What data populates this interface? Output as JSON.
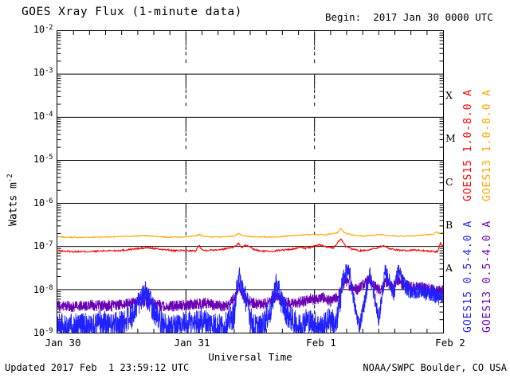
{
  "header": {
    "title": "GOES Xray Flux (1-minute data)",
    "begin_label": "Begin:  2017 Jan 30 0000 UTC"
  },
  "footer": {
    "updated": "Updated 2017 Feb  1 23:59:12 UTC",
    "credit": "NOAA/SWPC Boulder, CO USA"
  },
  "axes": {
    "x_title": "Universal Time",
    "y_title_base": "Watts m",
    "y_title_exp": "-2",
    "x_tick_labels": [
      "Jan 30",
      "Jan 31",
      "Feb 1",
      "Feb 2"
    ],
    "y_tick_base": "10",
    "y_tick_exponents": [
      -2,
      -3,
      -4,
      -5,
      -6,
      -7,
      -8,
      -9
    ],
    "flare_class_letters": [
      "X",
      "M",
      "C",
      "B",
      "A"
    ]
  },
  "legend": [
    {
      "label": "GOES15 1.0-8.0 A",
      "color": "#ff0000"
    },
    {
      "label": "GOES13 1.0-8.0 A",
      "color": "#ffa500"
    },
    {
      "label": "GOES15 0.5-4.0 A",
      "color": "#2121ff"
    },
    {
      "label": "GOES13 0.5-4.0 A",
      "color": "#6a00b4"
    }
  ],
  "chart_data": {
    "type": "line",
    "title": "GOES Xray Flux (1-minute data)",
    "xlabel": "Universal Time",
    "ylabel": "Watts m^-2",
    "x_unit": "hours since 2017 Jan 30 0000 UTC",
    "x_range_hours": [
      0,
      72
    ],
    "x_day_labels": [
      "Jan 30",
      "Jan 31",
      "Feb 1",
      "Feb 2"
    ],
    "y_scale": "log10",
    "y_log10_range": [
      -9,
      -2
    ],
    "grid": {
      "horizontal_solid_at_decades": true,
      "vertical_dashed_at_day_boundaries_hours": [
        24,
        48
      ]
    },
    "flare_classes": [
      {
        "label": "X",
        "log10_band_center": -3.5
      },
      {
        "label": "M",
        "log10_band_center": -4.5
      },
      {
        "label": "C",
        "log10_band_center": -5.5
      },
      {
        "label": "B",
        "log10_band_center": -6.5
      },
      {
        "label": "A",
        "log10_band_center": -7.5
      }
    ],
    "series": [
      {
        "name": "GOES13 1.0-8.0 A",
        "color": "#ffa500",
        "band": "long",
        "seed": 7,
        "noise_log10": 0.012,
        "step_min": 6,
        "keypoints_hour_log10flux": [
          [
            0,
            -6.78
          ],
          [
            4,
            -6.79
          ],
          [
            8,
            -6.78
          ],
          [
            12,
            -6.77
          ],
          [
            16,
            -6.75
          ],
          [
            18,
            -6.76
          ],
          [
            20,
            -6.78
          ],
          [
            24,
            -6.78
          ],
          [
            26,
            -6.75
          ],
          [
            26.5,
            -6.72
          ],
          [
            27.5,
            -6.77
          ],
          [
            30,
            -6.78
          ],
          [
            33,
            -6.76
          ],
          [
            33.8,
            -6.7
          ],
          [
            34.5,
            -6.75
          ],
          [
            36,
            -6.77
          ],
          [
            40,
            -6.78
          ],
          [
            44,
            -6.75
          ],
          [
            46,
            -6.73
          ],
          [
            48,
            -6.72
          ],
          [
            50,
            -6.73
          ],
          [
            52.3,
            -6.68
          ],
          [
            52.9,
            -6.58
          ],
          [
            53.6,
            -6.68
          ],
          [
            55,
            -6.73
          ],
          [
            57,
            -6.76
          ],
          [
            59,
            -6.74
          ],
          [
            60.5,
            -6.72
          ],
          [
            62,
            -6.75
          ],
          [
            64,
            -6.76
          ],
          [
            66,
            -6.75
          ],
          [
            68,
            -6.74
          ],
          [
            70,
            -6.72
          ],
          [
            70.8,
            -6.67
          ],
          [
            71.4,
            -6.7
          ],
          [
            72,
            -6.68
          ]
        ]
      },
      {
        "name": "GOES15 1.0-8.0 A",
        "color": "#ff0000",
        "band": "long",
        "seed": 13,
        "noise_log10": 0.02,
        "step_min": 6,
        "keypoints_hour_log10flux": [
          [
            0,
            -7.1
          ],
          [
            3,
            -7.12
          ],
          [
            6,
            -7.12
          ],
          [
            9,
            -7.1
          ],
          [
            12,
            -7.09
          ],
          [
            15,
            -7.05
          ],
          [
            17,
            -7.03
          ],
          [
            19,
            -7.06
          ],
          [
            22,
            -7.1
          ],
          [
            24,
            -7.09
          ],
          [
            25.8,
            -7.11
          ],
          [
            26.4,
            -6.97
          ],
          [
            27.2,
            -7.09
          ],
          [
            29,
            -7.08
          ],
          [
            31,
            -7.06
          ],
          [
            33,
            -7.01
          ],
          [
            33.8,
            -6.93
          ],
          [
            34.4,
            -7.02
          ],
          [
            35.2,
            -6.97
          ],
          [
            36.5,
            -7.06
          ],
          [
            38,
            -7.11
          ],
          [
            40,
            -7.11
          ],
          [
            42,
            -7.08
          ],
          [
            44,
            -7.06
          ],
          [
            45.5,
            -7.01
          ],
          [
            46.5,
            -7.05
          ],
          [
            47.5,
            -7.01
          ],
          [
            48.8,
            -6.96
          ],
          [
            50,
            -7.0
          ],
          [
            51.5,
            -7.03
          ],
          [
            52.9,
            -6.82
          ],
          [
            53.8,
            -7.0
          ],
          [
            55,
            -7.06
          ],
          [
            56.5,
            -7.1
          ],
          [
            58,
            -7.08
          ],
          [
            59.5,
            -7.04
          ],
          [
            60.8,
            -6.98
          ],
          [
            62,
            -7.05
          ],
          [
            63.5,
            -7.08
          ],
          [
            65,
            -7.1
          ],
          [
            66.5,
            -7.08
          ],
          [
            68,
            -7.09
          ],
          [
            69.5,
            -7.11
          ],
          [
            71,
            -7.12
          ],
          [
            71.5,
            -6.92
          ],
          [
            72,
            -7.01
          ]
        ]
      },
      {
        "name": "GOES13 0.5-4.0 A",
        "color": "#6a00b4",
        "band": "short",
        "seed": 29,
        "noise_log10": 0.13,
        "step_min": 2,
        "keypoints_hour_log10flux": [
          [
            0,
            -8.37
          ],
          [
            3,
            -8.4
          ],
          [
            6,
            -8.36
          ],
          [
            9,
            -8.38
          ],
          [
            12,
            -8.36
          ],
          [
            14,
            -8.31
          ],
          [
            16,
            -8.27
          ],
          [
            18,
            -8.33
          ],
          [
            20,
            -8.4
          ],
          [
            22,
            -8.38
          ],
          [
            24,
            -8.36
          ],
          [
            26,
            -8.34
          ],
          [
            28,
            -8.31
          ],
          [
            30,
            -8.39
          ],
          [
            32,
            -8.37
          ],
          [
            33.3,
            -8.15
          ],
          [
            33.8,
            -7.92
          ],
          [
            34.5,
            -8.1
          ],
          [
            35.5,
            -8.25
          ],
          [
            37,
            -8.33
          ],
          [
            39,
            -8.33
          ],
          [
            41,
            -8.12
          ],
          [
            42,
            -8.28
          ],
          [
            44,
            -8.33
          ],
          [
            46,
            -8.28
          ],
          [
            47,
            -8.2
          ],
          [
            48,
            -8.24
          ],
          [
            49.5,
            -8.18
          ],
          [
            51,
            -8.28
          ],
          [
            52.3,
            -8.18
          ],
          [
            53.8,
            -7.78
          ],
          [
            54.7,
            -7.92
          ],
          [
            56,
            -8.0
          ],
          [
            57,
            -7.86
          ],
          [
            58.2,
            -7.76
          ],
          [
            59.2,
            -7.92
          ],
          [
            60.2,
            -8.0
          ],
          [
            61.5,
            -7.82
          ],
          [
            62.5,
            -7.95
          ],
          [
            63.6,
            -7.76
          ],
          [
            64.6,
            -7.94
          ],
          [
            65.6,
            -7.9
          ],
          [
            66.6,
            -7.95
          ],
          [
            68,
            -7.94
          ],
          [
            69,
            -7.99
          ],
          [
            70,
            -7.99
          ],
          [
            71,
            -8.04
          ],
          [
            72,
            -8.0
          ]
        ]
      },
      {
        "name": "GOES15 0.5-4.0 A",
        "color": "#2121ff",
        "band": "short",
        "seed": 3,
        "noise_log10": [
          [
            0,
            0.3
          ],
          [
            53.5,
            0.19
          ]
        ],
        "step_min": 2,
        "keypoints_hour_log10flux": [
          [
            0,
            -8.82
          ],
          [
            2,
            -8.88
          ],
          [
            4,
            -8.78
          ],
          [
            6,
            -8.88
          ],
          [
            8,
            -8.75
          ],
          [
            10,
            -8.85
          ],
          [
            12,
            -8.78
          ],
          [
            14,
            -8.6
          ],
          [
            15.5,
            -8.25
          ],
          [
            16.5,
            -8.1
          ],
          [
            17.5,
            -8.35
          ],
          [
            19,
            -8.75
          ],
          [
            21,
            -8.88
          ],
          [
            23,
            -8.82
          ],
          [
            25,
            -8.78
          ],
          [
            27,
            -8.72
          ],
          [
            29,
            -8.8
          ],
          [
            31,
            -8.88
          ],
          [
            33,
            -8.6
          ],
          [
            33.8,
            -7.68
          ],
          [
            34.5,
            -7.95
          ],
          [
            35.5,
            -8.35
          ],
          [
            36.5,
            -8.85
          ],
          [
            38,
            -8.88
          ],
          [
            39.8,
            -8.5
          ],
          [
            40.8,
            -7.88
          ],
          [
            41.8,
            -8.25
          ],
          [
            43,
            -8.6
          ],
          [
            45,
            -8.85
          ],
          [
            46.5,
            -8.7
          ],
          [
            48,
            -8.8
          ],
          [
            49.5,
            -8.88
          ],
          [
            51,
            -8.65
          ],
          [
            52,
            -8.88
          ],
          [
            53.3,
            -7.8
          ],
          [
            53.9,
            -7.58
          ],
          [
            54.6,
            -7.62
          ],
          [
            55.6,
            -8.45
          ],
          [
            56.4,
            -8.85
          ],
          [
            57.4,
            -8.25
          ],
          [
            58.3,
            -7.62
          ],
          [
            59,
            -8.05
          ],
          [
            60,
            -8.7
          ],
          [
            61.2,
            -7.58
          ],
          [
            62,
            -7.82
          ],
          [
            62.8,
            -8.1
          ],
          [
            63.6,
            -7.55
          ],
          [
            64.6,
            -7.85
          ],
          [
            65.6,
            -8.02
          ],
          [
            66.6,
            -8.06
          ],
          [
            67.6,
            -8.0
          ],
          [
            68.6,
            -8.08
          ],
          [
            70,
            -8.08
          ],
          [
            71,
            -8.18
          ],
          [
            72,
            -8.12
          ]
        ]
      }
    ]
  },
  "colors": {
    "axis": "#000000",
    "background": "#ffffff",
    "goes15_long": "#ff0000",
    "goes13_long": "#ffa500",
    "goes15_short": "#2121ff",
    "goes13_short": "#6a00b4"
  }
}
